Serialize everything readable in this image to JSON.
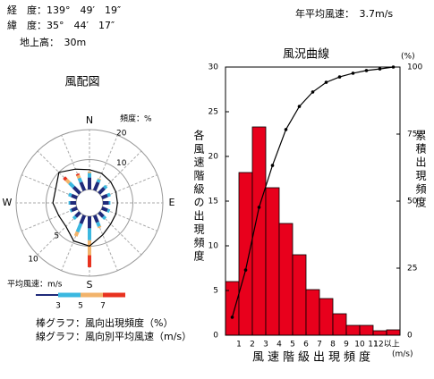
{
  "header": {
    "longitude": "経　度：139°　49′　19″",
    "latitude": "緯　度：35°　44′　17″",
    "height": "地上高：　30m",
    "mean_speed": "年平均風速：　3.7m/s"
  },
  "chart_data": [
    {
      "type": "windrose",
      "title": "風配図",
      "frequency_label": "頻度：%",
      "directions": [
        "N",
        null,
        null,
        null,
        "E",
        null,
        null,
        null,
        "S",
        null,
        null,
        null,
        "W",
        null,
        null,
        null
      ],
      "rticks": [
        10,
        20
      ],
      "rlim": [
        0,
        20
      ],
      "series": [
        {
          "color": "#1f2a7a",
          "values": [
            4,
            3,
            2.5,
            2,
            2,
            2,
            2,
            2.5,
            4,
            3,
            2,
            2,
            2,
            2,
            3,
            3
          ]
        },
        {
          "color": "#3bb8e0",
          "values": [
            1.5,
            1,
            1,
            1,
            0.5,
            0.8,
            1,
            1.5,
            4,
            3,
            1,
            0.5,
            0.5,
            1,
            2,
            1.5
          ]
        },
        {
          "color": "#f2b36b",
          "values": [
            0.5,
            0.3,
            0,
            0,
            0,
            0,
            0,
            0.5,
            5,
            1.5,
            0,
            0,
            0,
            0,
            1.5,
            1
          ]
        },
        {
          "color": "#e8321f",
          "values": [
            0,
            0,
            0,
            0,
            0,
            0,
            0,
            0,
            4,
            0,
            0,
            0,
            0,
            0,
            1,
            0.5
          ]
        }
      ],
      "speed_line": {
        "color": "#000000",
        "values": [
          3.0,
          2.8,
          2.5,
          2.3,
          2.2,
          2.3,
          2.5,
          3.2,
          4.5,
          4.2,
          3.0,
          3.0,
          3.5,
          3.5,
          4.5,
          3.5
        ]
      },
      "speed_ticks": [
        5,
        10
      ],
      "speed_legend_label": "平均風速：m/s",
      "class_breaks": [
        3,
        5,
        7
      ],
      "notes": [
        "棒グラフ：風向出現頻度（%）",
        "線グラフ：風向別平均風速（m/s）"
      ]
    },
    {
      "type": "histogram",
      "title": "風況曲線",
      "xlabel": "風速階級出現頻度",
      "xunit": "(m/s)",
      "ylabel": "各風速階級の出現頻度",
      "y2label": "累積出現頻度",
      "y2unit": "(%)",
      "bins": [
        0,
        1,
        2,
        3,
        4,
        5,
        6,
        7,
        8,
        9,
        10,
        11,
        12,
        13
      ],
      "values": [
        6,
        18.2,
        23.3,
        16.5,
        12.5,
        9,
        5.1,
        4.1,
        2.4,
        1.1,
        1.1,
        0.5,
        0.6
      ],
      "color": "#e8001c",
      "line": {
        "axis": "y2",
        "color": "#000000",
        "x": [
          0.5,
          1.5,
          2.5,
          3.5,
          4.5,
          5.5,
          6.5,
          7.5,
          8.5,
          9.5,
          10.5,
          11.5,
          12.5
        ],
        "values": [
          6.7,
          24.3,
          47.7,
          63.3,
          76.7,
          85.3,
          90.7,
          94.3,
          96.3,
          97.7,
          98.7,
          99.3,
          100
        ]
      },
      "xlim": [
        0,
        13
      ],
      "xticks": [
        1,
        2,
        3,
        4,
        5,
        6,
        7,
        8,
        9,
        10,
        11,
        {
          "value": 12,
          "label": "12以上"
        }
      ],
      "ylim": [
        0,
        30
      ],
      "yticks": [
        0,
        5,
        10,
        15,
        20,
        25,
        30
      ],
      "y2lim": [
        0,
        100
      ],
      "y2ticks": [
        0,
        25,
        50,
        75,
        100
      ]
    }
  ]
}
